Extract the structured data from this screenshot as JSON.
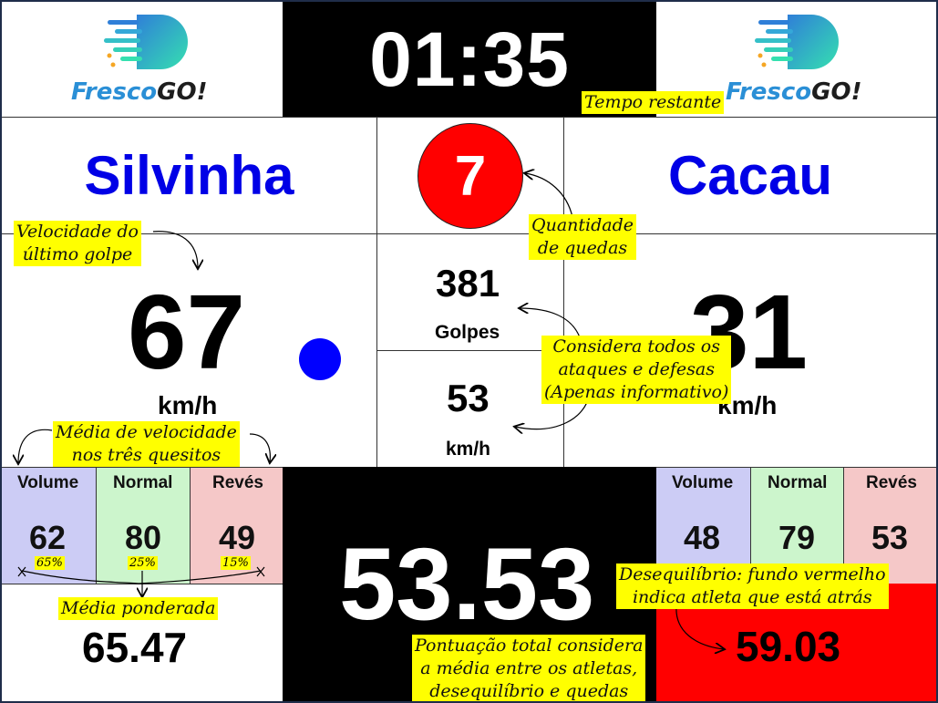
{
  "colors": {
    "timer_bg": "#000000",
    "name": "#0000e6",
    "falls_bg": "#ff0000",
    "serve_dot": "#0000ff",
    "volume_bg": "#ccccf5",
    "normal_bg": "#ccf5cc",
    "reves_bg": "#f5c8c8",
    "behind_bg": "#ff0000",
    "annotation_bg": "#ffff00"
  },
  "logo": {
    "part1": "Fresco",
    "part2": "GO!"
  },
  "timer": {
    "value": "01:35"
  },
  "player_left": {
    "name": "Silvinha",
    "last_speed": "67",
    "speed_unit": "km/h",
    "serve_indicator": true,
    "categories": [
      {
        "label": "Volume",
        "value": "62"
      },
      {
        "label": "Normal",
        "value": "80"
      },
      {
        "label": "Revés",
        "value": "49"
      }
    ],
    "weighted_avg": "65.47"
  },
  "player_right": {
    "name": "Cacau",
    "last_speed": "31",
    "speed_unit": "km/h",
    "categories": [
      {
        "label": "Volume",
        "value": "48"
      },
      {
        "label": "Normal",
        "value": "79"
      },
      {
        "label": "Revés",
        "value": "53"
      }
    ],
    "weighted_avg": "59.03",
    "is_behind": true
  },
  "center": {
    "falls": "7",
    "strikes": "381",
    "strikes_label": "Golpes",
    "avg_speed": "53",
    "avg_speed_unit": "km/h"
  },
  "total_score": "53.53",
  "weights": {
    "volume": "65%",
    "normal": "25%",
    "reves": "15%"
  },
  "annotations": {
    "time": "Tempo restante",
    "falls_l1": "Quantidade",
    "falls_l2": "de quedas",
    "speed_l1": "Velocidade do",
    "speed_l2": "último golpe",
    "strikes_l1": "Considera todos os",
    "strikes_l2": "ataques e defesas",
    "strikes_l3": "(Apenas informativo)",
    "avg_l1": "Média de velocidade",
    "avg_l2": "nos três quesitos",
    "weighted": "Média ponderada",
    "imbalance_l1": "Desequilíbrio: fundo vermelho",
    "imbalance_l2": "indica atleta que está atrás",
    "total_l1": "Pontuação total considera",
    "total_l2": "a média entre os atletas,",
    "total_l3": "desequilíbrio e quedas"
  }
}
